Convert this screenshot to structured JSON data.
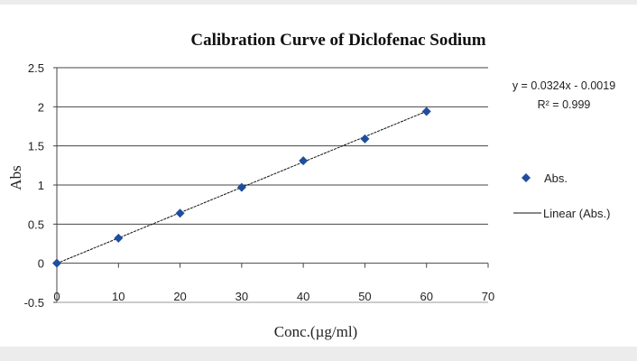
{
  "chart_data": {
    "type": "scatter",
    "title": "Calibration Curve of Diclofenac Sodium",
    "xlabel": "Conc.(µg/ml)",
    "ylabel": "Abs",
    "xlim": [
      0,
      70
    ],
    "ylim": [
      -0.5,
      2.5
    ],
    "x_ticks": [
      "0",
      "10",
      "20",
      "30",
      "40",
      "50",
      "60",
      "70"
    ],
    "y_ticks": [
      "-0.5",
      "0",
      "0.5",
      "1",
      "1.5",
      "2",
      "2.5"
    ],
    "grid": "horizontal",
    "legend": "right",
    "series": [
      {
        "name": "Abs.",
        "x": [
          0,
          10,
          20,
          30,
          40,
          50,
          60
        ],
        "y": [
          0,
          0.32,
          0.64,
          0.97,
          1.31,
          1.59,
          1.94
        ],
        "marker": "diamond",
        "color": "#1f4e9e"
      }
    ],
    "trendline": {
      "name": "Linear (Abs.)",
      "slope": 0.0324,
      "intercept": -0.0019,
      "color": "#111111"
    },
    "annotations": {
      "equation": "y = 0.0324x - 0.0019",
      "r_squared": "R² = 0.999"
    }
  }
}
